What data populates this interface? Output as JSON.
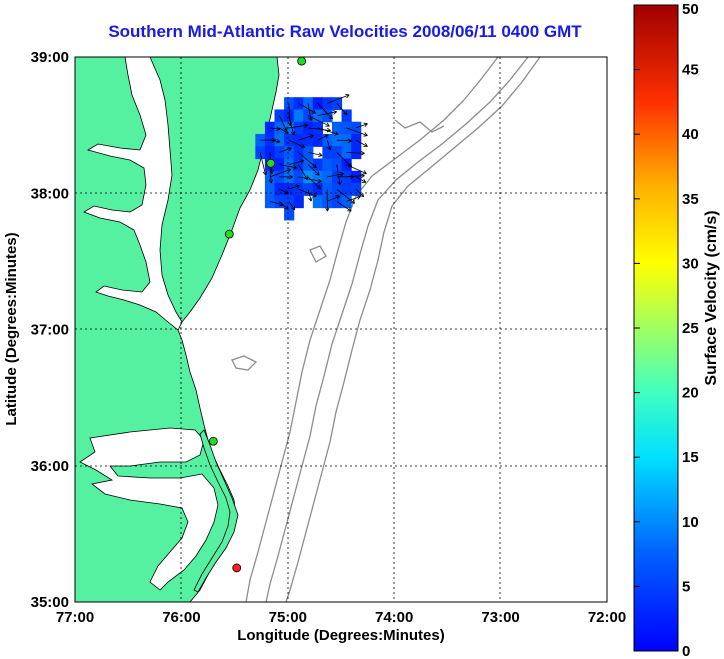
{
  "title": "Southern Mid-Atlantic Raw Velocities 2008/06/11 0400 GMT",
  "x_axis": {
    "label": "Longitude (Degrees:Minutes)",
    "ticks": [
      "77:00",
      "76:00",
      "75:00",
      "74:00",
      "73:00",
      "72:00"
    ]
  },
  "y_axis": {
    "label": "Latitude (Degrees:Minutes)",
    "ticks": [
      "39:00",
      "38:00",
      "37:00",
      "36:00",
      "35:00"
    ]
  },
  "colorbar": {
    "label": "Surface Velocity (cm/s)",
    "ticks": [
      "50",
      "45",
      "40",
      "35",
      "30",
      "25",
      "20",
      "15",
      "10",
      "5",
      "0"
    ],
    "range": [
      0,
      50
    ],
    "colormap": "jet"
  },
  "chart_data": {
    "type": "map",
    "lon_range": [
      -77,
      -72
    ],
    "lat_range": [
      35,
      39
    ],
    "grid": true,
    "land_color": "#55f0a0",
    "bathymetry_contour_color": "#8c8c8c",
    "stations": [
      {
        "lon": -74.87,
        "lat": 38.97,
        "color": "#22dd22",
        "status": "active"
      },
      {
        "lon": -75.16,
        "lat": 38.22,
        "color": "#22dd22",
        "status": "active"
      },
      {
        "lon": -75.55,
        "lat": 37.7,
        "color": "#22dd22",
        "status": "active"
      },
      {
        "lon": -75.7,
        "lat": 36.18,
        "color": "#22dd22",
        "status": "active"
      },
      {
        "lon": -75.48,
        "lat": 35.25,
        "color": "#ff2020",
        "status": "inactive"
      }
    ],
    "velocity_field": {
      "lon_range": [
        -75.35,
        -74.25
      ],
      "lat_range": [
        37.65,
        38.75
      ],
      "speed_range_cm_s": [
        2,
        12
      ],
      "mean_direction": "southeast"
    }
  }
}
